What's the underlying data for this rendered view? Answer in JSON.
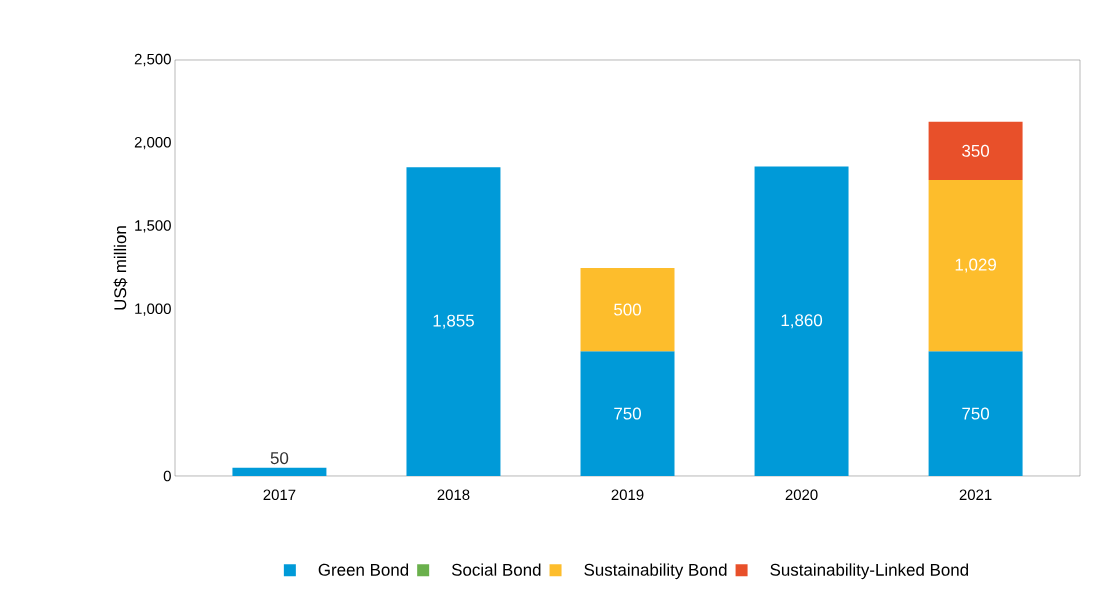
{
  "chart_data": {
    "type": "bar",
    "stacked": true,
    "ylabel": "US$ million",
    "categories": [
      "2017",
      "2018",
      "2019",
      "2020",
      "2021"
    ],
    "series": [
      {
        "name": "Green Bond",
        "color": "#009ad8",
        "values": [
          50,
          1855,
          750,
          1860,
          750
        ],
        "value_labels": [
          "50",
          "1,855",
          "750",
          "1,860",
          "750"
        ]
      },
      {
        "name": "Social Bond",
        "color": "#6ab04c",
        "values": [
          null,
          null,
          null,
          null,
          null
        ]
      },
      {
        "name": "Sustainability Bond",
        "color": "#fdbd2c",
        "values": [
          null,
          null,
          500,
          null,
          1029
        ],
        "value_labels": [
          null,
          null,
          "500",
          null,
          "1,029"
        ]
      },
      {
        "name": "Sustainability-Linked Bond",
        "color": "#e8502a",
        "values": [
          null,
          null,
          null,
          null,
          350
        ],
        "value_labels": [
          null,
          null,
          null,
          null,
          "350"
        ]
      }
    ],
    "ylim": [
      0,
      2500
    ],
    "yticks": [
      {
        "value": 0,
        "label": "0"
      },
      {
        "value": 1000,
        "label": "1,000"
      },
      {
        "value": 1500,
        "label": "1,500"
      },
      {
        "value": 2000,
        "label": "2,000"
      },
      {
        "value": 2500,
        "label": "2,500"
      }
    ],
    "grid": false,
    "legend": "bottom"
  }
}
